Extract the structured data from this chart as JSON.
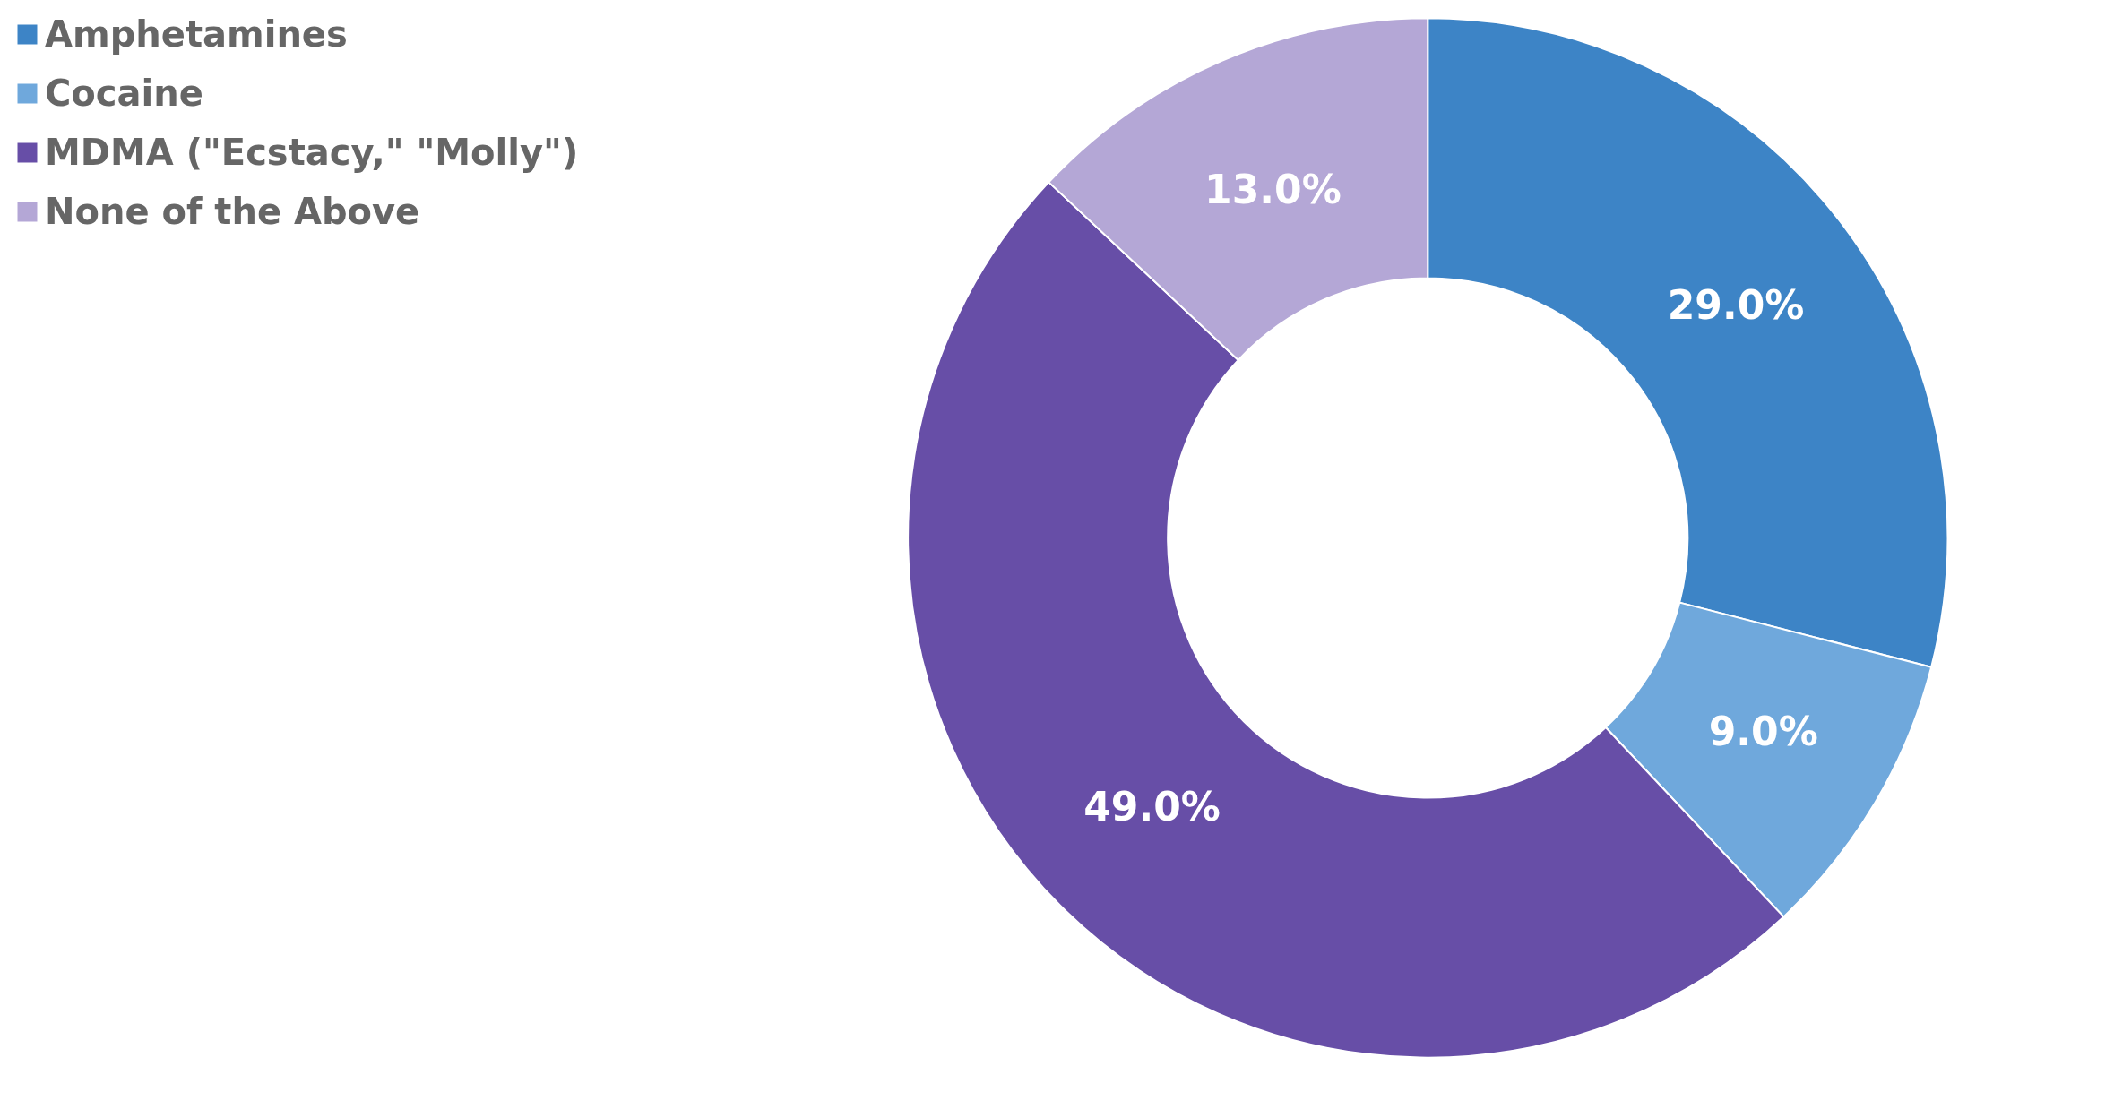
{
  "chart_data": {
    "type": "donut",
    "categories": [
      "Amphetamines",
      "Cocaine",
      "MDMA (\"Ecstacy,\" \"Molly\")",
      "None of the Above"
    ],
    "values": [
      29,
      9,
      49,
      13
    ],
    "colors": [
      "#3d84c6",
      "#6fa8dc",
      "#674ea7",
      "#b4a7d6"
    ],
    "value_labels": [
      "29.0%",
      "9.0%",
      "49.0%",
      "13.0%"
    ],
    "legend": "top left"
  }
}
